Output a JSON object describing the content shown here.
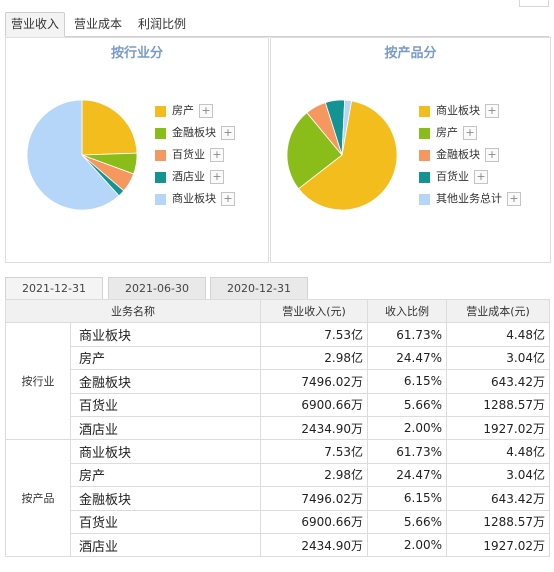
{
  "top_tabs": [
    "营业收入",
    "营业成本",
    "利润比例"
  ],
  "charts": {
    "industry": {
      "title": "按行业分",
      "legend": [
        {
          "label": "房产",
          "color": "#f4bd1e"
        },
        {
          "label": "金融板块",
          "color": "#8bbd1a"
        },
        {
          "label": "百货业",
          "color": "#f79760"
        },
        {
          "label": "酒店业",
          "color": "#139493"
        },
        {
          "label": "商业板块",
          "color": "#b5d6f8"
        }
      ]
    },
    "product": {
      "title": "按产品分",
      "legend": [
        {
          "label": "商业板块",
          "color": "#f4bd1e"
        },
        {
          "label": "房产",
          "color": "#8bbd1a"
        },
        {
          "label": "金融板块",
          "color": "#f79760"
        },
        {
          "label": "百货业",
          "color": "#139493"
        },
        {
          "label": "其他业务总计",
          "color": "#b5d6f8"
        }
      ]
    }
  },
  "chart_data": [
    {
      "type": "pie",
      "title": "按行业分",
      "categories": [
        "房产",
        "金融板块",
        "百货业",
        "酒店业",
        "商业板块"
      ],
      "values": [
        24.47,
        6.15,
        5.66,
        2.0,
        61.73
      ],
      "colors": [
        "#f4bd1e",
        "#8bbd1a",
        "#f79760",
        "#139493",
        "#b5d6f8"
      ],
      "legend_position": "right"
    },
    {
      "type": "pie",
      "title": "按产品分",
      "categories": [
        "商业板块",
        "房产",
        "金融板块",
        "百货业",
        "其他业务总计"
      ],
      "values": [
        61.73,
        24.47,
        6.15,
        5.66,
        2.0
      ],
      "colors": [
        "#f4bd1e",
        "#8bbd1a",
        "#f79760",
        "#139493",
        "#b5d6f8"
      ],
      "legend_position": "right"
    }
  ],
  "date_tabs": [
    "2021-12-31",
    "2021-06-30",
    "2020-12-31"
  ],
  "table": {
    "headers": [
      "业务名称",
      "营业收入(元)",
      "收入比例",
      "营业成本(元)"
    ],
    "groups": [
      {
        "label": "按行业",
        "rows": [
          {
            "name": "商业板块",
            "revenue": "7.53亿",
            "ratio": "61.73%",
            "cost": "4.48亿"
          },
          {
            "name": "房产",
            "revenue": "2.98亿",
            "ratio": "24.47%",
            "cost": "3.04亿"
          },
          {
            "name": "金融板块",
            "revenue": "7496.02万",
            "ratio": "6.15%",
            "cost": "643.42万"
          },
          {
            "name": "百货业",
            "revenue": "6900.66万",
            "ratio": "5.66%",
            "cost": "1288.57万"
          },
          {
            "name": "酒店业",
            "revenue": "2434.90万",
            "ratio": "2.00%",
            "cost": "1927.02万"
          }
        ]
      },
      {
        "label": "按产品",
        "rows": [
          {
            "name": "商业板块",
            "revenue": "7.53亿",
            "ratio": "61.73%",
            "cost": "4.48亿"
          },
          {
            "name": "房产",
            "revenue": "2.98亿",
            "ratio": "24.47%",
            "cost": "3.04亿"
          },
          {
            "name": "金融板块",
            "revenue": "7496.02万",
            "ratio": "6.15%",
            "cost": "643.42万"
          },
          {
            "name": "百货业",
            "revenue": "6900.66万",
            "ratio": "5.66%",
            "cost": "1288.57万"
          },
          {
            "name": "酒店业",
            "revenue": "2434.90万",
            "ratio": "2.00%",
            "cost": "1927.02万"
          }
        ]
      }
    ]
  }
}
